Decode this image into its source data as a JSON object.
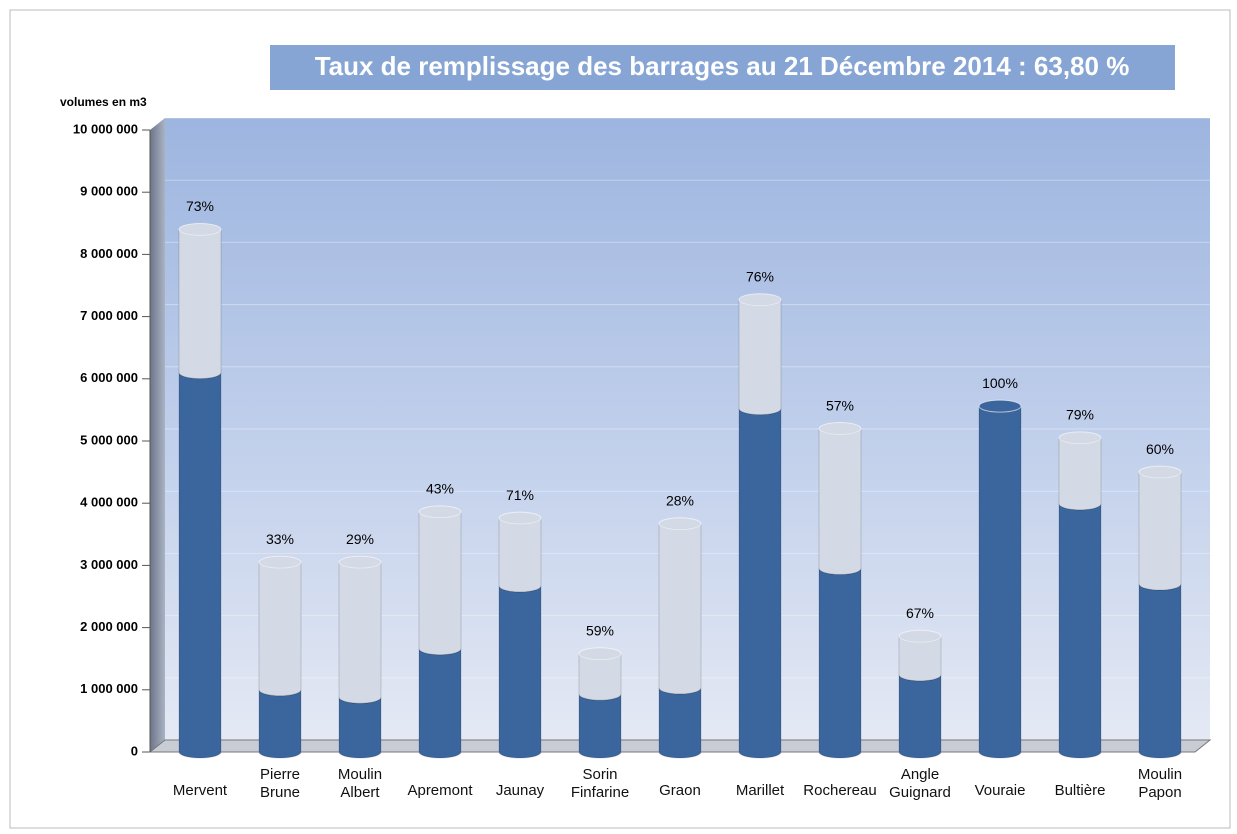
{
  "chart_data": {
    "type": "stacked-cylinder",
    "title": "Taux de remplissage des barrages au 21 Décembre 2014 : 63,80 %",
    "y_label": "volumes en m3",
    "categories": [
      "Mervent",
      "Pierre\nBrune",
      "Moulin\nAlbert",
      "Apremont",
      "Jaunay",
      "Sorin\nFinfarine",
      "Graon",
      "Marillet",
      "Rochereau",
      "Angle\nGuignard",
      "Vouraie",
      "Bultière",
      "Moulin\nPapon"
    ],
    "series": [
      {
        "color": "#3b659d",
        "values": [
          6100000,
          1000000,
          880000,
          1660000,
          2670000,
          930000,
          1030000,
          5520000,
          2950000,
          1240000,
          5560000,
          3990000,
          2700000
        ]
      },
      {
        "color": "#d3dae5",
        "values": [
          2300000,
          2050000,
          2170000,
          2200000,
          1090000,
          650000,
          2640000,
          1750000,
          2250000,
          620000,
          0,
          1060000,
          1800000
        ]
      }
    ],
    "bar_labels": [
      "73%",
      "33%",
      "29%",
      "43%",
      "71%",
      "59%",
      "28%",
      "76%",
      "57%",
      "67%",
      "100%",
      "79%",
      "60%"
    ],
    "ylim": [
      0,
      10000000
    ],
    "yticks": [
      {
        "value": 0,
        "label": "0"
      },
      {
        "value": 1000000,
        "label": "1 000 000"
      },
      {
        "value": 2000000,
        "label": "2 000 000"
      },
      {
        "value": 3000000,
        "label": "3 000 000"
      },
      {
        "value": 4000000,
        "label": "4 000 000"
      },
      {
        "value": 5000000,
        "label": "5 000 000"
      },
      {
        "value": 6000000,
        "label": "6 000 000"
      },
      {
        "value": 7000000,
        "label": "7 000 000"
      },
      {
        "value": 8000000,
        "label": "8 000 000"
      },
      {
        "value": 9000000,
        "label": "9 000 000"
      },
      {
        "value": 10000000,
        "label": "10 000 000"
      }
    ],
    "grid": true
  }
}
